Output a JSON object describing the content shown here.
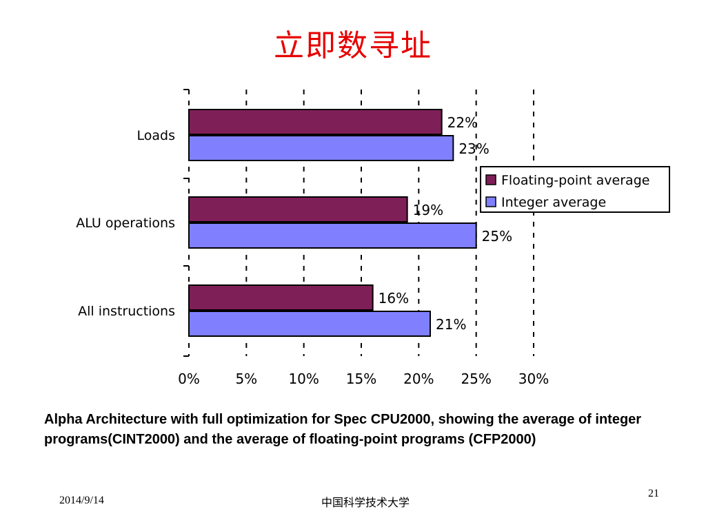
{
  "slide": {
    "title": "立即数寻址",
    "caption": "Alpha Architecture with full optimization for Spec CPU2000, showing the average of integer programs(CINT2000) and the average of floating-point programs (CFP2000)",
    "footer_date": "2014/9/14",
    "footer_institution": "中国科学技术大学",
    "page_number": "21"
  },
  "chart_data": {
    "type": "bar",
    "orientation": "horizontal",
    "categories": [
      "Loads",
      "ALU operations",
      "All instructions"
    ],
    "series": [
      {
        "name": "Floating-point average",
        "values": [
          22,
          19,
          16
        ],
        "labels": [
          "22%",
          "19%",
          "16%"
        ],
        "color": "#7f1f58"
      },
      {
        "name": "Integer average",
        "values": [
          23,
          25,
          21
        ],
        "labels": [
          "23%",
          "25%",
          "21%"
        ],
        "color": "#8080ff"
      }
    ],
    "xlim": [
      0,
      30
    ],
    "xticks": [
      "0%",
      "5%",
      "10%",
      "15%",
      "20%",
      "25%",
      "30%"
    ],
    "grid": "vertical dashed",
    "legend_position": "right"
  }
}
